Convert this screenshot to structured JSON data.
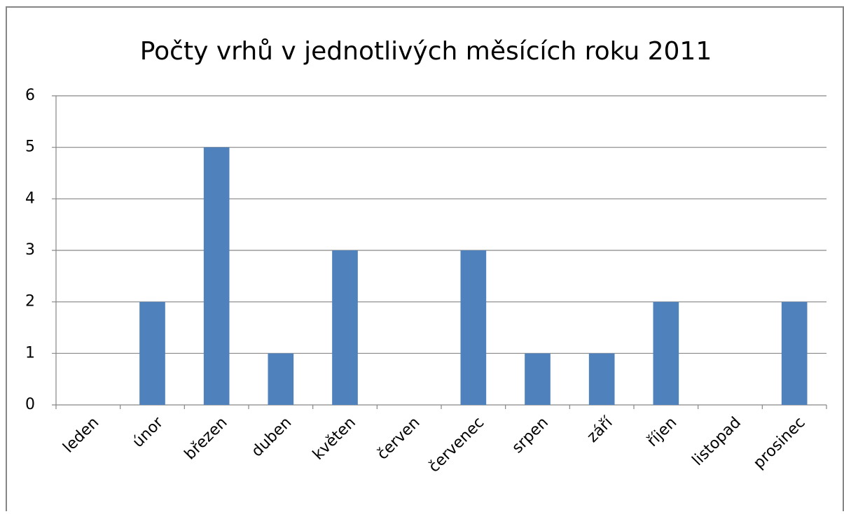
{
  "chart_data": {
    "type": "bar",
    "title": "Počty vrhů v jednotlivých měsících roku 2011",
    "categories": [
      "leden",
      "únor",
      "březen",
      "duben",
      "květen",
      "červen",
      "červenec",
      "srpen",
      "září",
      "říjen",
      "listopad",
      "prosinec"
    ],
    "values": [
      0,
      2,
      5,
      1,
      3,
      0,
      3,
      1,
      1,
      2,
      0,
      2
    ],
    "color": "#4f81bd",
    "ylim": [
      0,
      6
    ],
    "yticks": [
      0,
      1,
      2,
      3,
      4,
      5,
      6
    ],
    "grid": true
  }
}
